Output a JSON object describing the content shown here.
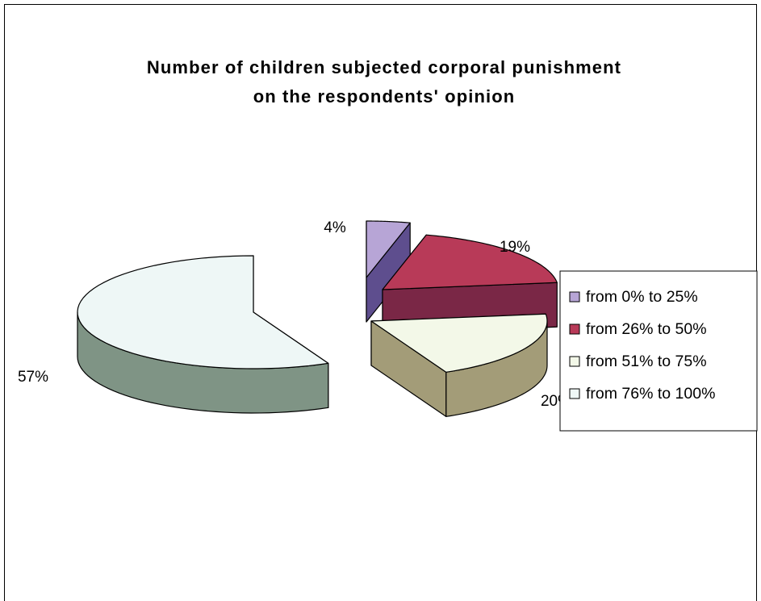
{
  "chart_data": {
    "type": "pie",
    "title": "Number of children subjected corporal punishment",
    "subtitle": "on the respondents' opinion",
    "categories": [
      "from 0% to 25%",
      "from 26% to 50%",
      "from 51% to 75%",
      "from 76% to 100%"
    ],
    "values": [
      4,
      19,
      20,
      57
    ],
    "labels": [
      "4%",
      "19%",
      "20%",
      "57%"
    ],
    "colors": {
      "top": [
        "#B7A5D6",
        "#B83A58",
        "#F3F8E8",
        "#EEF7F6"
      ],
      "side": [
        "#5E4E8E",
        "#7A2746",
        "#A39C78",
        "#7F9485"
      ]
    },
    "legend_position": "right",
    "exploded": true,
    "three_d": true
  }
}
